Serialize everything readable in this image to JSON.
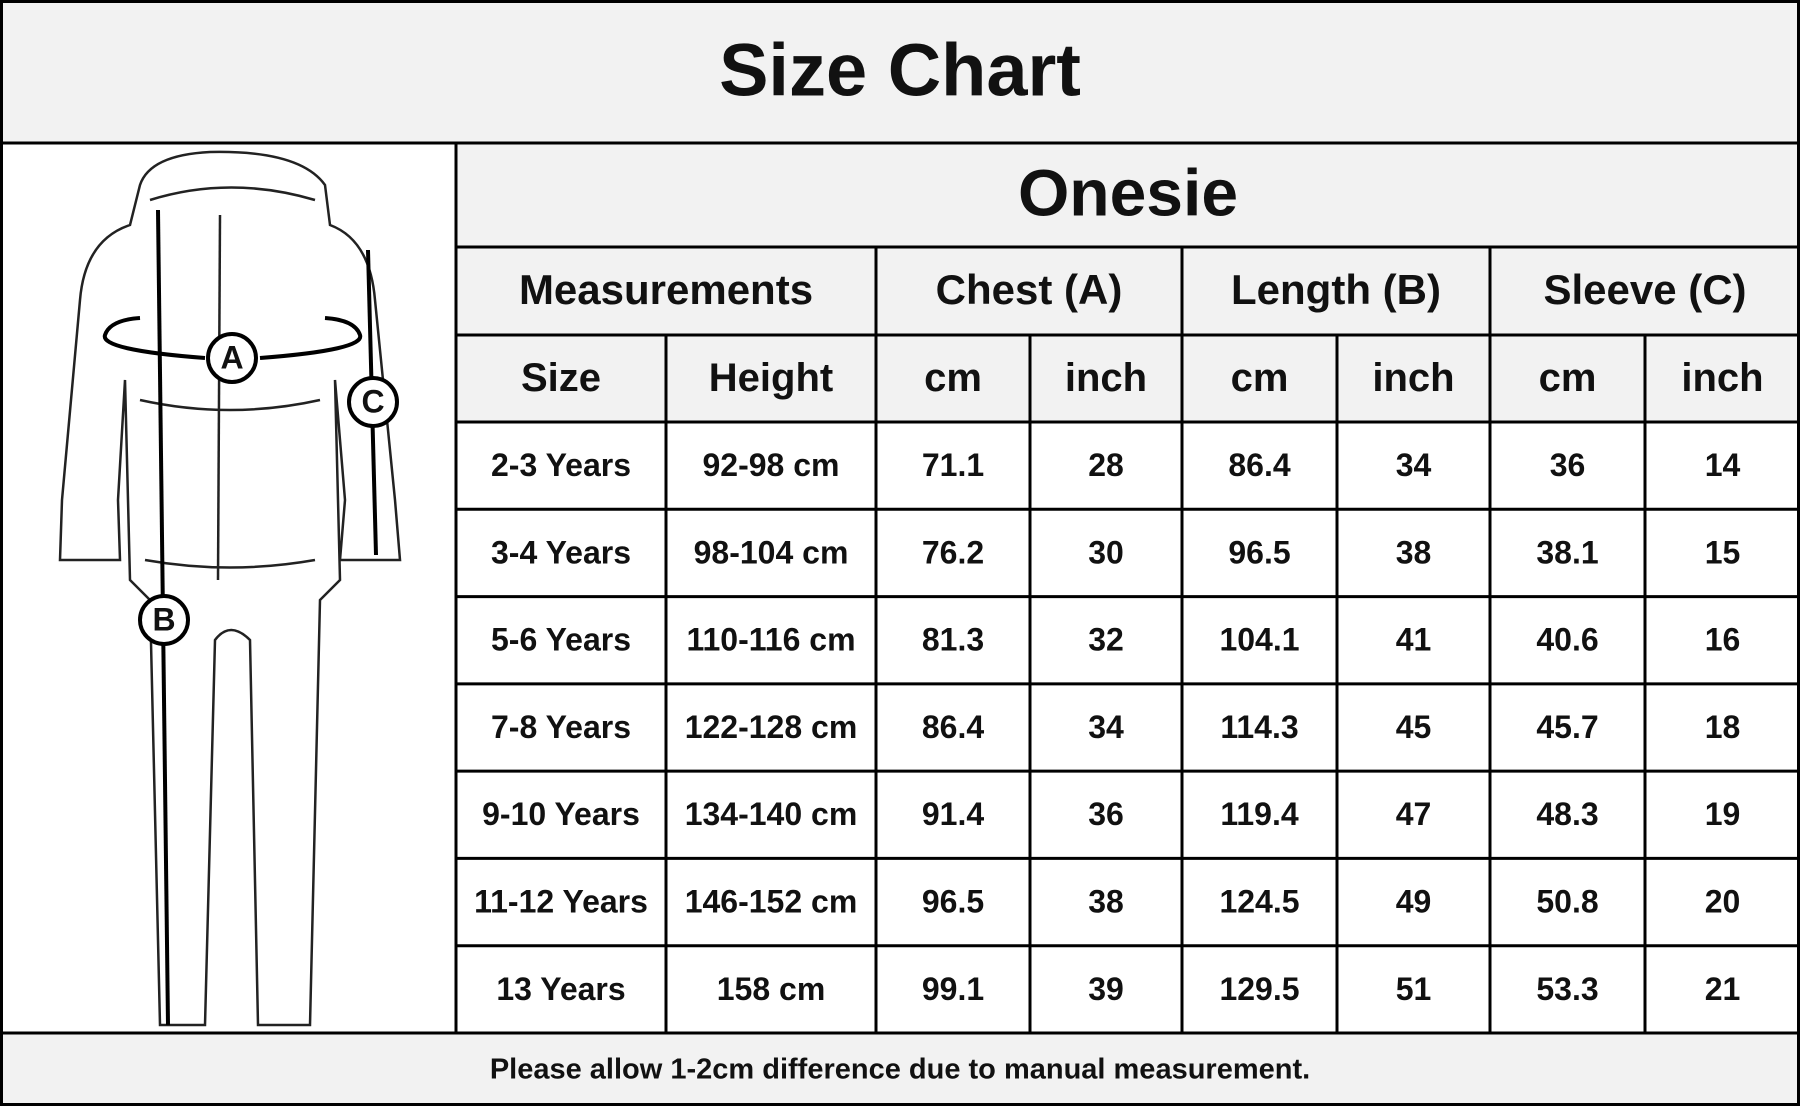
{
  "title": "Size Chart",
  "figure": {
    "labels": [
      "A",
      "B",
      "C"
    ]
  },
  "table": {
    "product": "Onesie",
    "groups": [
      "Measurements",
      "Chest (A)",
      "Length (B)",
      "Sleeve (C)"
    ],
    "columns": [
      "Size",
      "Height",
      "cm",
      "inch",
      "cm",
      "inch",
      "cm",
      "inch"
    ],
    "rows": [
      [
        "2-3 Years",
        "92-98 cm",
        71.1,
        28,
        86.4,
        34,
        36,
        14
      ],
      [
        "3-4 Years",
        "98-104 cm",
        76.2,
        30,
        96.5,
        38,
        38.1,
        15
      ],
      [
        "5-6 Years",
        "110-116 cm",
        81.3,
        32,
        104.1,
        41,
        40.6,
        16
      ],
      [
        "7-8 Years",
        "122-128 cm",
        86.4,
        34,
        114.3,
        45,
        45.7,
        18
      ],
      [
        "9-10 Years",
        "134-140 cm",
        91.4,
        36,
        119.4,
        47,
        48.3,
        19
      ],
      [
        "11-12 Years",
        "146-152 cm",
        96.5,
        38,
        124.5,
        49,
        50.8,
        20
      ],
      [
        "13 Years",
        "158 cm",
        99.1,
        39,
        129.5,
        51,
        53.3,
        21
      ]
    ]
  },
  "footer": "Please allow 1-2cm difference due to manual measurement."
}
